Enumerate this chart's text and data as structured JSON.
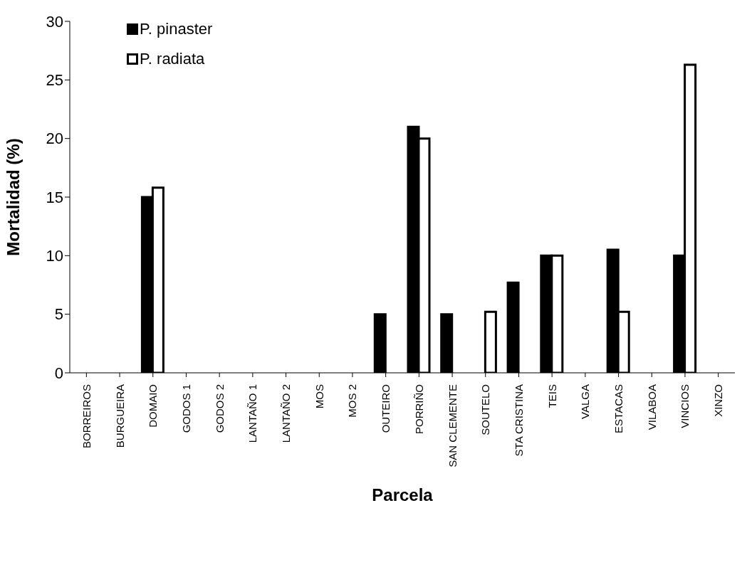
{
  "chart_data": {
    "type": "bar",
    "xlabel": "Parcela",
    "ylabel": "Mortalidad (%)",
    "categories": [
      "BORREIROS",
      "BURGUEIRA",
      "DOMAIO",
      "GODOS 1",
      "GODOS 2",
      "LANTAÑO 1",
      "LANTAÑO 2",
      "MOS",
      "MOS 2",
      "OUTEIRO",
      "PORRIÑO",
      "SAN CLEMENTE",
      "SOUTELO",
      "STA CRISTINA",
      "TEIS",
      "VALGA",
      "ESTACAS",
      "VILABOA",
      "VINCIOS",
      "XINZO"
    ],
    "series": [
      {
        "name": "P. pinaster",
        "color": "#000000",
        "values": [
          0,
          0,
          15,
          0,
          0,
          0,
          0,
          0,
          0,
          5,
          21,
          5,
          0,
          7.7,
          10,
          0,
          10.5,
          0,
          10,
          0
        ]
      },
      {
        "name": "P. radiata",
        "color": "#ffffff",
        "values": [
          0,
          0,
          15.8,
          0,
          0,
          0,
          0,
          0,
          0,
          0,
          20,
          0,
          5.2,
          0,
          10,
          0,
          5.2,
          0,
          26.3,
          0
        ]
      }
    ],
    "ylim": [
      0,
      30
    ],
    "yticks": [
      0,
      5,
      10,
      15,
      20,
      25,
      30
    ],
    "grid": false,
    "legend": "top left"
  }
}
